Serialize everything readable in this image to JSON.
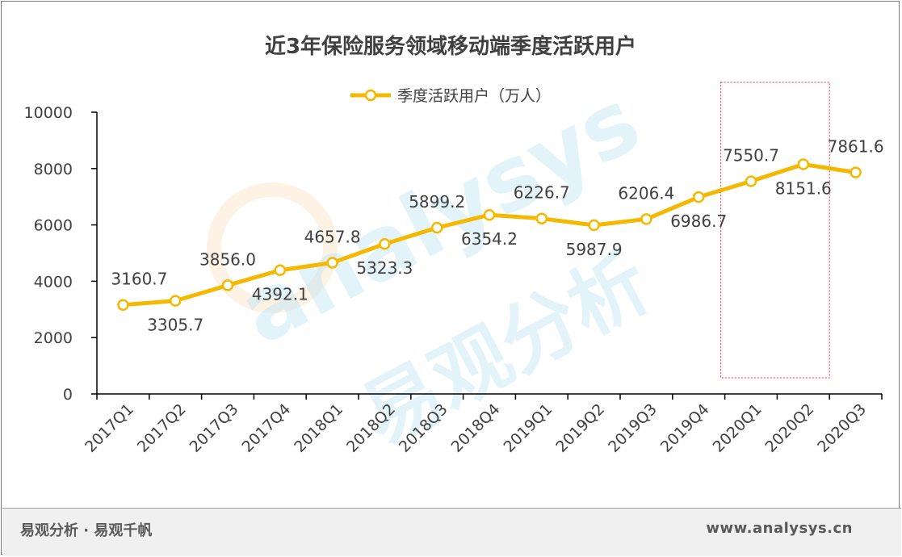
{
  "chart_data": {
    "type": "line",
    "title": "近3年保险服务领域移动端季度活跃用户",
    "categories": [
      "2017Q1",
      "2017Q2",
      "2017Q3",
      "2017Q4",
      "2018Q1",
      "2018Q2",
      "2018Q3",
      "2018Q4",
      "2019Q1",
      "2019Q2",
      "2019Q3",
      "2019Q4",
      "2020Q1",
      "2020Q2",
      "2020Q3"
    ],
    "series": [
      {
        "name": "季度活跃用户（万人）",
        "values": [
          3160.7,
          3305.7,
          3856.0,
          4392.1,
          4657.8,
          5323.3,
          5899.2,
          6354.2,
          6226.7,
          5987.9,
          6206.4,
          6986.7,
          7550.7,
          8151.6,
          7861.6
        ],
        "labels": [
          "3160.7",
          "3305.7",
          "3856.0",
          "4392.1",
          "4657.8",
          "5323.3",
          "5899.2",
          "6354.2",
          "6226.7",
          "5987.9",
          "6206.4",
          "6986.7",
          "7550.7",
          "8151.6",
          "7861.6"
        ],
        "label_positions": [
          "above",
          "below",
          "above",
          "below",
          "above",
          "below",
          "above",
          "below",
          "above",
          "below",
          "above",
          "below",
          "above",
          "below",
          "above"
        ],
        "color": "#f5b800"
      }
    ],
    "yticks": [
      "0",
      "2000",
      "4000",
      "6000",
      "8000",
      "10000"
    ],
    "ylim": [
      0,
      10000
    ],
    "xlabel": "",
    "ylabel": "",
    "grid": false,
    "legend_placement": "top-center",
    "highlight_range": [
      "2020Q1",
      "2020Q2"
    ],
    "highlight_color": "#e03030"
  },
  "watermark": {
    "latin": "analysys",
    "cjk": "易观分析"
  },
  "footer": {
    "left": "易观分析 · 易观千帆",
    "right": "www.analysys.cn"
  }
}
